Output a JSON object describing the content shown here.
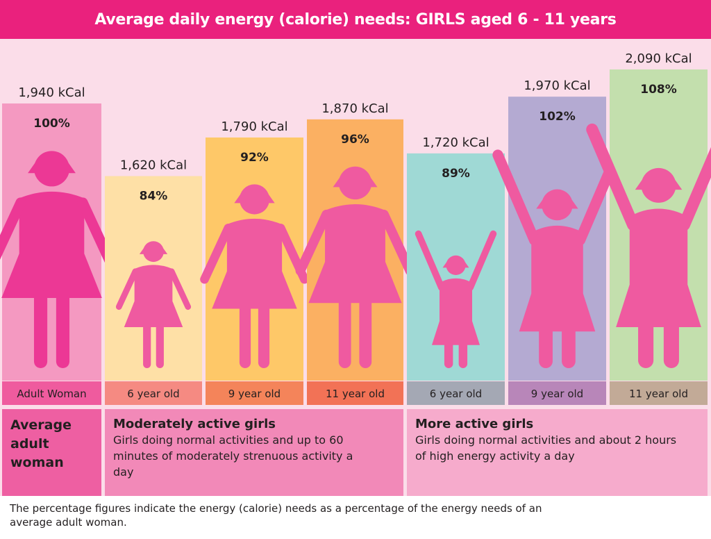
{
  "header": {
    "title": "Average daily energy (calorie) needs: GIRLS aged 6 - 11 years"
  },
  "chart_data": {
    "type": "bar",
    "title": "Average daily energy (calorie) needs: GIRLS aged 6 - 11 years",
    "xlabel": "",
    "ylabel": "",
    "unit": "kCal",
    "categories": [
      "Adult Woman",
      "6 year old",
      "9 year old",
      "11 year old",
      "6 year old",
      "9 year old",
      "11 year old"
    ],
    "groups": [
      "Average adult woman",
      "Moderately active girls",
      "Moderately active girls",
      "Moderately active girls",
      "More active girls",
      "More active girls",
      "More active girls"
    ],
    "values": [
      1940,
      1620,
      1790,
      1870,
      1720,
      1970,
      2090
    ],
    "value_labels": [
      "1,940 kCal",
      "1,620 kCal",
      "1,790 kCal",
      "1,870 kCal",
      "1,720 kCal",
      "1,970 kCal",
      "2,090 kCal"
    ],
    "percent_of_adult": [
      100,
      84,
      92,
      96,
      89,
      102,
      108
    ],
    "percent_labels": [
      "100%",
      "84%",
      "92%",
      "96%",
      "89%",
      "102%",
      "108%"
    ],
    "figure_pose": [
      "arms-down",
      "arms-down",
      "arms-down",
      "arms-down",
      "arms-up",
      "arms-up",
      "arms-up"
    ],
    "bar_colors": [
      "#f499c1",
      "#fee0a6",
      "#fec868",
      "#fbb062",
      "#9fd9d5",
      "#b4aad2",
      "#c3dfad"
    ],
    "label_colors": [
      "#ef5b9e",
      "#f58a82",
      "#f4845a",
      "#f27256",
      "#a4a8b4",
      "#b886b9",
      "#c2aa97"
    ],
    "figure_colors": [
      "#ec3895",
      "#ef5aa0",
      "#ef5aa0",
      "#ef5aa0",
      "#ef5aa0",
      "#ef5aa0",
      "#ef5aa0"
    ],
    "grid": false,
    "legend": "none"
  },
  "descriptions": {
    "adult": {
      "title": "Average adult woman"
    },
    "moderate": {
      "title": "Moderately active girls",
      "text": "Girls doing normal activities and up to 60 minutes of moderately strenuous activity a day"
    },
    "active": {
      "title": "More active girls",
      "text": "Girls doing normal activities and about 2 hours of high energy activity a day"
    }
  },
  "footnote": "The percentage figures indicate the energy (calorie) needs as a percentage of the energy needs of an average adult woman."
}
